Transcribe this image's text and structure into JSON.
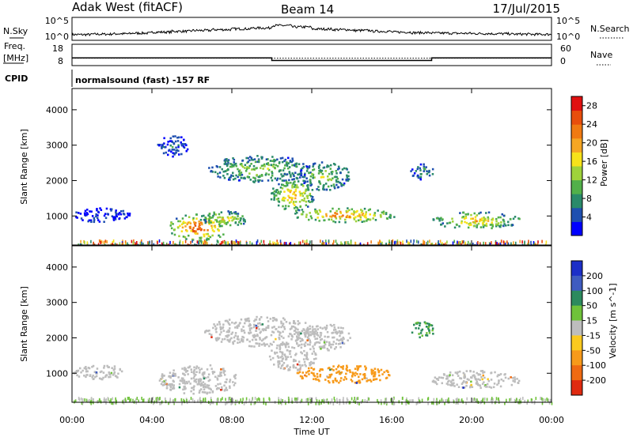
{
  "header": {
    "site": "Adak West (fitACF)",
    "beam": "Beam 14",
    "date": "17/Jul/2015"
  },
  "noise_panel": {
    "left_label": "N.Sky",
    "right_label": "N.Search",
    "left_ticks": [
      "10^5",
      "10^0"
    ],
    "right_ticks": [
      "10^5",
      "10^0"
    ],
    "sky_level": [
      0.18,
      0.2,
      0.22,
      0.25,
      0.3,
      0.34,
      0.38,
      0.42,
      0.46,
      0.5,
      0.62,
      0.55,
      0.45,
      0.42,
      0.38,
      0.34,
      0.3,
      0.27,
      0.25,
      0.24,
      0.23,
      0.22,
      0.2,
      0.19
    ]
  },
  "freq_panel": {
    "left_label_1": "Freq.",
    "left_label_2": "[MHz]",
    "right_label": "Nave",
    "left_ticks": [
      "18",
      "8"
    ],
    "right_ticks": [
      "60",
      "0"
    ],
    "freq_steps": [
      {
        "from_h": 0,
        "to_h": 10,
        "mhz": 11.5
      },
      {
        "from_h": 10,
        "to_h": 18,
        "mhz": 10.2
      },
      {
        "from_h": 18,
        "to_h": 24,
        "mhz": 11.5
      }
    ],
    "freq_range": [
      8,
      18
    ],
    "nave_level": 20,
    "nave_range": [
      0,
      60
    ]
  },
  "cpid": {
    "label": "CPID",
    "text": "normalsound (fast) -157 RF"
  },
  "chart_data": [
    {
      "type": "heatmap",
      "name": "power",
      "ylabel": "Slant Range [km]",
      "xlabel": "Time UT",
      "x_ticks": [
        "00:00",
        "04:00",
        "08:00",
        "12:00",
        "16:00",
        "20:00",
        "00:00"
      ],
      "x_range_hours": [
        0,
        24
      ],
      "y_ticks": [
        1000,
        2000,
        3000,
        4000
      ],
      "ylim": [
        180,
        4600
      ],
      "colorbar": {
        "label": "Power [dB]",
        "ticks": [
          "4",
          "8",
          "12",
          "16",
          "20",
          "24",
          "28"
        ],
        "range": [
          0,
          30
        ],
        "colors": [
          "#0000ff",
          "#1e4fb0",
          "#2a8a6a",
          "#52b04a",
          "#9fd23a",
          "#f7e21a",
          "#f5a623",
          "#f07a12",
          "#e84e0c",
          "#e01010"
        ]
      },
      "blobs": [
        {
          "t": 6.3,
          "r": 700,
          "dt": 1.5,
          "dr": 380,
          "v": 25
        },
        {
          "t": 7.6,
          "r": 950,
          "dt": 1.3,
          "dr": 220,
          "v": 16
        },
        {
          "t": 9.4,
          "r": 2350,
          "dt": 2.6,
          "dr": 380,
          "v": 13
        },
        {
          "t": 11.0,
          "r": 1600,
          "dt": 1.1,
          "dr": 450,
          "v": 19
        },
        {
          "t": 12.6,
          "r": 2150,
          "dt": 1.3,
          "dr": 400,
          "v": 13
        },
        {
          "t": 13.6,
          "r": 1050,
          "dt": 2.6,
          "dr": 200,
          "v": 22
        },
        {
          "t": 17.5,
          "r": 2300,
          "dt": 0.6,
          "dr": 250,
          "v": 8
        },
        {
          "t": 20.2,
          "r": 900,
          "dt": 2.2,
          "dr": 240,
          "v": 18
        },
        {
          "t": 1.4,
          "r": 1050,
          "dt": 1.5,
          "dr": 200,
          "v": 4
        },
        {
          "t": 5.0,
          "r": 3000,
          "dt": 0.8,
          "dr": 300,
          "v": 6
        }
      ]
    },
    {
      "type": "heatmap",
      "name": "velocity",
      "ylabel": "Slant Range [km]",
      "xlabel": "Time UT",
      "x_ticks": [
        "00:00",
        "04:00",
        "08:00",
        "12:00",
        "16:00",
        "20:00",
        "00:00"
      ],
      "x_range_hours": [
        0,
        24
      ],
      "y_ticks": [
        1000,
        2000,
        3000,
        4000
      ],
      "ylim": [
        180,
        4600
      ],
      "colorbar": {
        "label": "Velocity [m s^-1]",
        "ticks": [
          "200",
          "100",
          "50",
          "15",
          "-15",
          "-50",
          "-100",
          "-200"
        ],
        "colors": [
          "#1c2fc8",
          "#3f5cc0",
          "#2c8a5e",
          "#6fc23a",
          "#bdbdbd",
          "#fbc91f",
          "#f79a1a",
          "#ef6a12",
          "#e02a10"
        ]
      },
      "blobs": [
        {
          "t": 6.3,
          "r": 850,
          "dt": 2.0,
          "dr": 420,
          "v": 0
        },
        {
          "t": 9.4,
          "r": 2200,
          "dt": 2.8,
          "dr": 420,
          "v": 0
        },
        {
          "t": 11.0,
          "r": 1500,
          "dt": 1.2,
          "dr": 400,
          "v": 0
        },
        {
          "t": 12.6,
          "r": 2050,
          "dt": 1.3,
          "dr": 380,
          "v": 0
        },
        {
          "t": 13.6,
          "r": 1000,
          "dt": 2.4,
          "dr": 260,
          "v": -60
        },
        {
          "t": 20.2,
          "r": 850,
          "dt": 2.3,
          "dr": 250,
          "v": 0
        },
        {
          "t": 1.4,
          "r": 1050,
          "dt": 1.4,
          "dr": 200,
          "v": 0
        },
        {
          "t": 17.5,
          "r": 2250,
          "dt": 0.6,
          "dr": 230,
          "v": 40
        }
      ]
    }
  ]
}
